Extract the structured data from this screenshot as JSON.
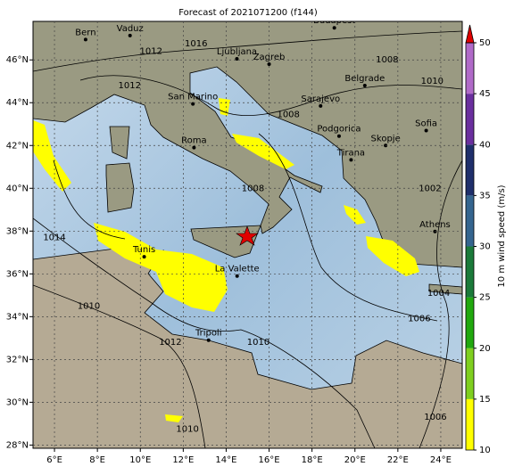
{
  "title": "Forecast of 2021071200 (f144)",
  "map": {
    "lonlim": [
      5,
      25
    ],
    "latlim": [
      27.85,
      47.8
    ],
    "lonticks": [
      {
        "value": 6,
        "label": "6°E"
      },
      {
        "value": 8,
        "label": "8°E"
      },
      {
        "value": 10,
        "label": "10°E"
      },
      {
        "value": 12,
        "label": "12°E"
      },
      {
        "value": 14,
        "label": "14°E"
      },
      {
        "value": 16,
        "label": "16°E"
      },
      {
        "value": 18,
        "label": "18°E"
      },
      {
        "value": 20,
        "label": "20°E"
      },
      {
        "value": 22,
        "label": "22°E"
      },
      {
        "value": 24,
        "label": "24°E"
      }
    ],
    "latticks": [
      {
        "value": 28,
        "label": "28°N"
      },
      {
        "value": 30,
        "label": "30°N"
      },
      {
        "value": 32,
        "label": "32°N"
      },
      {
        "value": 34,
        "label": "34°N"
      },
      {
        "value": 36,
        "label": "36°N"
      },
      {
        "value": 38,
        "label": "38°N"
      },
      {
        "value": 40,
        "label": "40°N"
      },
      {
        "value": 42,
        "label": "42°N"
      },
      {
        "value": 44,
        "label": "44°N"
      },
      {
        "value": 46,
        "label": "46°N"
      }
    ],
    "cities": [
      {
        "name": "Bern",
        "lon": 7.45,
        "lat": 46.95
      },
      {
        "name": "Vaduz",
        "lon": 9.52,
        "lat": 47.14
      },
      {
        "name": "Ljubljana",
        "lon": 14.5,
        "lat": 46.05
      },
      {
        "name": "Zagreb",
        "lon": 16.0,
        "lat": 45.8
      },
      {
        "name": "Budapest",
        "lon": 19.04,
        "lat": 47.5
      },
      {
        "name": "Belgrade",
        "lon": 20.46,
        "lat": 44.8
      },
      {
        "name": "Sarajevo",
        "lon": 18.4,
        "lat": 43.85
      },
      {
        "name": "San Marino",
        "lon": 12.45,
        "lat": 43.94
      },
      {
        "name": "Roma",
        "lon": 12.5,
        "lat": 41.9
      },
      {
        "name": "Podgorica",
        "lon": 19.26,
        "lat": 42.44
      },
      {
        "name": "Skopje",
        "lon": 21.43,
        "lat": 42.0
      },
      {
        "name": "Tirana",
        "lon": 19.82,
        "lat": 41.33
      },
      {
        "name": "Sofia",
        "lon": 23.32,
        "lat": 42.7
      },
      {
        "name": "Athens",
        "lon": 23.73,
        "lat": 37.98
      },
      {
        "name": "Tunis",
        "lon": 10.18,
        "lat": 36.8
      },
      {
        "name": "La Valette",
        "lon": 14.51,
        "lat": 35.9
      },
      {
        "name": "Tripoli",
        "lon": 13.18,
        "lat": 32.9
      }
    ],
    "isobar_labels": [
      {
        "value": 1016,
        "lon": 12.6,
        "lat": 46.75
      },
      {
        "value": 1012,
        "lon": 10.5,
        "lat": 46.4
      },
      {
        "value": 1012,
        "lon": 9.5,
        "lat": 44.8
      },
      {
        "value": 1008,
        "lon": 16.9,
        "lat": 43.45
      },
      {
        "value": 1008,
        "lon": 21.5,
        "lat": 46.0
      },
      {
        "value": 1010,
        "lon": 23.6,
        "lat": 45.0
      },
      {
        "value": 1008,
        "lon": 15.25,
        "lat": 40.0
      },
      {
        "value": 1002,
        "lon": 23.5,
        "lat": 40.0
      },
      {
        "value": 1014,
        "lon": 6.0,
        "lat": 37.7
      },
      {
        "value": 1004,
        "lon": 23.9,
        "lat": 35.1
      },
      {
        "value": 1010,
        "lon": 7.6,
        "lat": 34.5
      },
      {
        "value": 1006,
        "lon": 23.0,
        "lat": 33.9
      },
      {
        "value": 1012,
        "lon": 11.4,
        "lat": 32.8
      },
      {
        "value": 1010,
        "lon": 15.5,
        "lat": 32.8
      },
      {
        "value": 1006,
        "lon": 23.75,
        "lat": 29.3
      },
      {
        "value": 1010,
        "lon": 12.2,
        "lat": 28.75
      }
    ]
  },
  "colorbar": {
    "label": "10 m wind speed (m/s)",
    "lim": [
      10,
      50
    ],
    "ticks": [
      10,
      15,
      20,
      25,
      30,
      35,
      40,
      45,
      50
    ],
    "colors": [
      "#ffff00",
      "#7fcf1f",
      "#21a80e",
      "#1b7a3a",
      "#35658f",
      "#1f2f6b",
      "#6a2f9e",
      "#b06ac8"
    ],
    "extend_color": "#e00000"
  }
}
